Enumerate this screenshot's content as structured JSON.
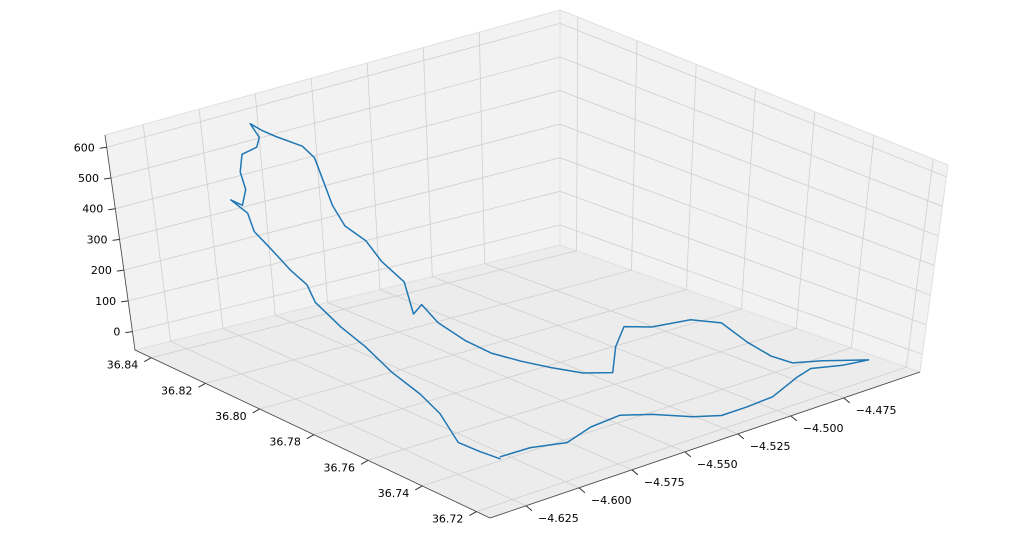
{
  "chart_data": {
    "type": "line3d",
    "color": "#1f77b4",
    "grid": true,
    "x": [
      -4.617,
      -4.604,
      -4.592,
      -4.577,
      -4.562,
      -4.552,
      -4.542,
      -4.531,
      -4.519,
      -4.507,
      -4.489,
      -4.48,
      -4.469,
      -4.458,
      -4.47,
      -4.472,
      -4.485,
      -4.49,
      -4.491,
      -4.489,
      -4.497,
      -4.514,
      -4.523,
      -4.54,
      -4.557,
      -4.567,
      -4.574,
      -4.58,
      -4.585,
      -4.588,
      -4.59,
      -4.587,
      -4.596,
      -4.587,
      -4.588,
      -4.587,
      -4.591,
      -4.591,
      -4.587,
      -4.585,
      -4.585,
      -4.59,
      -4.592,
      -4.592,
      -4.596,
      -4.6,
      -4.603,
      -4.607,
      -4.609,
      -4.616,
      -4.616,
      -4.614,
      -4.618,
      -4.618,
      -4.619,
      -4.616,
      -4.619,
      -4.618,
      -4.616,
      -4.617,
      -4.617,
      -4.618,
      -4.625,
      -4.621,
      -4.618
    ],
    "y": [
      36.731,
      36.73,
      36.726,
      36.729,
      36.73,
      36.726,
      36.719,
      36.717,
      36.717,
      36.717,
      36.722,
      36.724,
      36.721,
      36.72,
      36.722,
      36.726,
      36.727,
      36.731,
      36.739,
      36.75,
      36.755,
      36.756,
      36.759,
      36.749,
      36.737,
      36.74,
      36.746,
      36.752,
      36.759,
      36.766,
      36.774,
      36.782,
      36.778,
      36.788,
      36.795,
      36.801,
      36.805,
      36.809,
      36.815,
      36.819,
      36.823,
      36.828,
      36.831,
      36.835,
      36.829,
      36.827,
      36.83,
      36.828,
      36.825,
      36.821,
      36.825,
      36.821,
      36.816,
      36.811,
      36.803,
      36.8,
      36.795,
      36.787,
      36.78,
      36.77,
      36.76,
      36.752,
      36.74,
      36.735,
      36.73
    ],
    "z": [
      20,
      25,
      30,
      35,
      35,
      30,
      25,
      10,
      10,
      15,
      20,
      20,
      15,
      10,
      30,
      20,
      40,
      60,
      80,
      100,
      110,
      120,
      130,
      140,
      140,
      150,
      160,
      170,
      180,
      200,
      230,
      250,
      255,
      300,
      340,
      380,
      420,
      470,
      520,
      570,
      590,
      610,
      620,
      625,
      615,
      600,
      570,
      530,
      490,
      470,
      470,
      440,
      410,
      380,
      340,
      300,
      270,
      220,
      180,
      140,
      110,
      80,
      50,
      30,
      20
    ],
    "xlim": [
      -4.642,
      -4.439
    ],
    "ylim": [
      36.715,
      36.846
    ],
    "zlim": [
      -60,
      640
    ],
    "xticks": [
      {
        "value": -4.625,
        "label": "−4.625"
      },
      {
        "value": -4.6,
        "label": "−4.600"
      },
      {
        "value": -4.575,
        "label": "−4.575"
      },
      {
        "value": -4.55,
        "label": "−4.550"
      },
      {
        "value": -4.525,
        "label": "−4.525"
      },
      {
        "value": -4.5,
        "label": "−4.500"
      },
      {
        "value": -4.475,
        "label": "−4.475"
      }
    ],
    "yticks": [
      36.72,
      36.74,
      36.76,
      36.78,
      {
        "value": 36.8,
        "label": "36.80"
      },
      36.82,
      36.84
    ],
    "zticks": [
      0,
      100,
      200,
      300,
      400,
      500,
      600
    ]
  }
}
